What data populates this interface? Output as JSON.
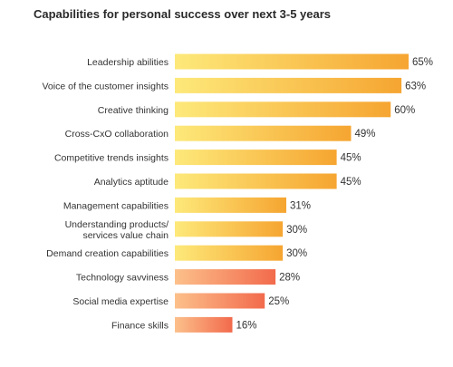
{
  "chart_data": {
    "type": "bar",
    "orientation": "horizontal",
    "title": "Capabilities for personal success over next 3-5 years",
    "categories": [
      "Leadership abilities",
      "Voice of the customer insights",
      "Creative thinking",
      "Cross-CxO collaboration",
      "Competitive trends insights",
      "Analytics aptitude",
      "Management capabilities",
      "Understanding products/ services value chain",
      "Demand creation capabilities",
      "Technology savviness",
      "Social media expertise",
      "Finance skills"
    ],
    "values": [
      65,
      63,
      60,
      49,
      45,
      45,
      31,
      30,
      30,
      28,
      25,
      16
    ],
    "value_labels": [
      "65%",
      "63%",
      "60%",
      "49%",
      "45%",
      "45%",
      "31%",
      "30%",
      "30%",
      "28%",
      "25%",
      "16%"
    ],
    "category_lines": [
      [
        "Leadership abilities"
      ],
      [
        "Voice of the customer insights"
      ],
      [
        "Creative thinking"
      ],
      [
        "Cross-CxO collaboration"
      ],
      [
        "Competitive trends insights"
      ],
      [
        "Analytics aptitude"
      ],
      [
        "Management capabilities"
      ],
      [
        "Understanding products/",
        "services value chain"
      ],
      [
        "Demand creation capabilities"
      ],
      [
        "Technology savviness"
      ],
      [
        "Social media expertise"
      ],
      [
        "Finance skills"
      ]
    ],
    "bar_colors": [
      "yellow-orange",
      "yellow-orange",
      "yellow-orange",
      "yellow-orange",
      "yellow-orange",
      "yellow-orange",
      "yellow-orange",
      "yellow-orange",
      "yellow-orange",
      "orange-red",
      "orange-red",
      "orange-red"
    ],
    "colors": {
      "yellow_start": "#fde97a",
      "yellow_end": "#f6a531",
      "orange_start": "#fcc08b",
      "orange_end": "#f26a4c"
    },
    "xlim": [
      0,
      65
    ],
    "grid": false,
    "legend": "none"
  }
}
